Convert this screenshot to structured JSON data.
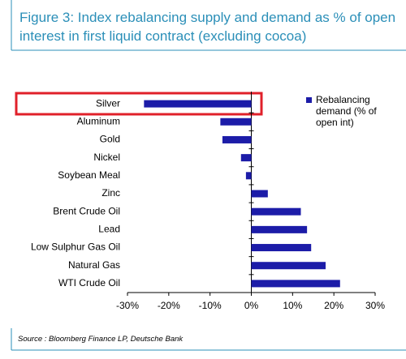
{
  "chart_data": {
    "type": "bar",
    "orientation": "horizontal",
    "title": "Figure 3: Index rebalancing supply and demand as % of open interest in first liquid contract (excluding cocoa)",
    "categories": [
      "Silver",
      "Aluminum",
      "Gold",
      "Nickel",
      "Soybean Meal",
      "Zinc",
      "Brent Crude Oil",
      "Lead",
      "Low Sulphur Gas Oil",
      "Natural Gas",
      "WTI Crude Oil"
    ],
    "series": [
      {
        "name": "Rebalancing demand (% of open int)",
        "color": "#1c1ca8",
        "values": [
          -26,
          -7.5,
          -7,
          -2.5,
          -1.3,
          4,
          12,
          13.5,
          14.5,
          18,
          21.5
        ]
      }
    ],
    "xlim": [
      -30,
      30
    ],
    "xticks": [
      {
        "value": -30,
        "label": "-30%"
      },
      {
        "value": -20,
        "label": "-20%"
      },
      {
        "value": -10,
        "label": "-10%"
      },
      {
        "value": 0,
        "label": "0%"
      },
      {
        "value": 10,
        "label": "10%"
      },
      {
        "value": 20,
        "label": "20%"
      },
      {
        "value": 30,
        "label": "30%"
      }
    ],
    "legend": "upper right",
    "source": "Source : Bloomberg Finance LP, Deutsche Bank"
  }
}
